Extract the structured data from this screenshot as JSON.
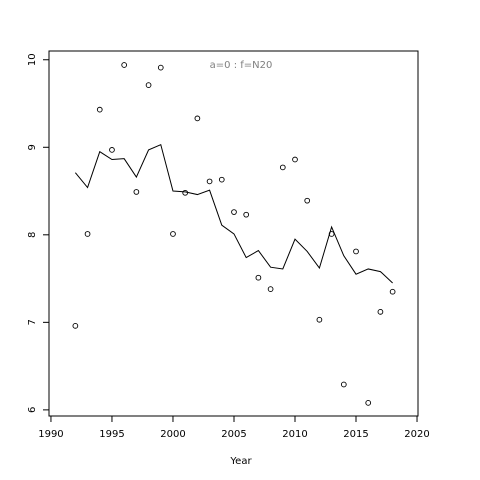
{
  "chart_data": {
    "type": "scatter",
    "annotation": "a=0  :  f=N20",
    "x_label": "Year",
    "x": [
      1992,
      1993,
      1994,
      1995,
      1996,
      1997,
      1998,
      1999,
      2000,
      2001,
      2002,
      2003,
      2004,
      2005,
      2006,
      2007,
      2008,
      2009,
      2010,
      2011,
      2012,
      2013,
      2014,
      2015,
      2016,
      2017,
      2018
    ],
    "series": [
      {
        "mode": "points",
        "color": "#000000",
        "values": [
          6.96,
          8.01,
          9.43,
          8.97,
          9.94,
          8.49,
          9.71,
          9.91,
          8.01,
          8.48,
          9.33,
          8.61,
          8.63,
          8.26,
          8.23,
          7.51,
          7.38,
          8.77,
          8.86,
          8.39,
          7.03,
          8.01,
          6.29,
          7.81,
          6.08,
          7.12,
          7.35
        ]
      },
      {
        "mode": "line",
        "color": "#000000",
        "values": [
          8.71,
          8.54,
          8.95,
          8.86,
          8.87,
          8.66,
          8.97,
          9.03,
          8.5,
          8.49,
          8.46,
          8.51,
          8.11,
          8.01,
          7.74,
          7.82,
          7.63,
          7.61,
          7.95,
          7.81,
          7.62,
          8.09,
          7.76,
          7.55,
          7.61,
          7.58,
          7.45
        ]
      }
    ],
    "xlim": [
      1989.84,
      2020.08
    ],
    "xticks": [
      1990,
      1995,
      2000,
      2005,
      2010,
      2015,
      2020
    ],
    "ylim": [
      5.93,
      10.1
    ],
    "yticks": [
      6,
      7,
      8,
      9,
      10
    ]
  }
}
